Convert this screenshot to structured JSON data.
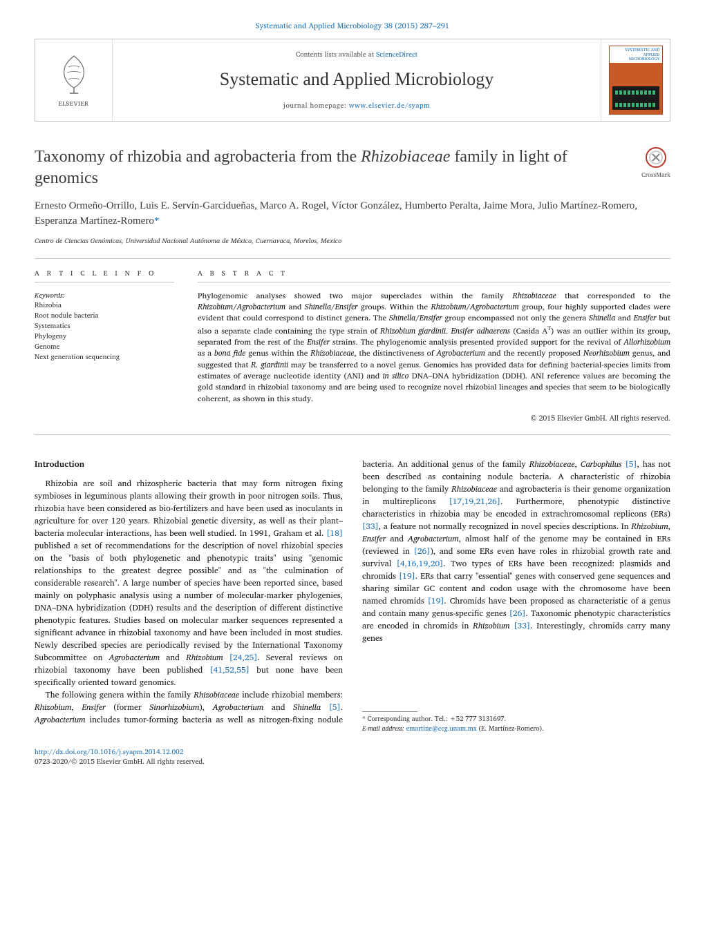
{
  "top_link": {
    "prefix": "",
    "journal": "Systematic and Applied Microbiology 38 (2015) 287–291"
  },
  "masthead": {
    "publisher": "ELSEVIER",
    "contents_prefix": "Contents lists available at ",
    "contents_link": "ScienceDirect",
    "journal_title": "Systematic and Applied Microbiology",
    "homepage_prefix": "journal homepage: ",
    "homepage_url": "www.elsevier.de/syapm",
    "cover_head": "SYSTEMATIC AND APPLIED MICROBIOLOGY"
  },
  "crossmark": "CrossMark",
  "title": {
    "pre": "Taxonomy of rhizobia and agrobacteria from the ",
    "ital": "Rhizobiaceae",
    "post": " family in light of genomics"
  },
  "authors": "Ernesto Ormeño-Orrillo, Luis E. Servín-Garcidueñas, Marco A. Rogel, Víctor González, Humberto Peralta, Jaime Mora, Julio Martínez-Romero, Esperanza Martínez-Romero",
  "corr_marker": "*",
  "affiliation": "Centro de Ciencias Genómicas, Universidad Nacional Autónoma de México, Cuernavaca, Morelos, Mexico",
  "info_head": "a r t i c l e   i n f o",
  "abs_head": "a b s t r a c t",
  "keywords_label": "Keywords:",
  "keywords": [
    "Rhizobia",
    "Root nodule bacteria",
    "Systematics",
    "Phylogeny",
    "Genome",
    "Next generation sequencing"
  ],
  "abstract_html": "Phylogenomic analyses showed two major superclades within the family <span class=\"ital\">Rhizobiaceae</span> that corresponded to the <span class=\"ital\">Rhizobium/Agrobacterium</span> and <span class=\"ital\">Shinella/Ensifer</span> groups. Within the <span class=\"ital\">Rhizobium/Agrobacterium</span> group, four highly supported clades were evident that could correspond to distinct genera. The <span class=\"ital\">Shinella/Ensifer</span> group encompassed not only the genera <span class=\"ital\">Shinella</span> and <span class=\"ital\">Ensifer</span> but also a separate clade containing the type strain of <span class=\"ital\">Rhizobium giardinii</span>. <span class=\"ital\">Ensifer adhaerens</span> (Casida A<sup>T</sup>) was an outlier within its group, separated from the rest of the <span class=\"ital\">Ensifer</span> strains. The phylogenomic analysis presented provided support for the revival of <span class=\"ital\">Allorhizobium</span> as a <span class=\"ital\">bona fide</span> genus within the <span class=\"ital\">Rhizobiaceae</span>, the distinctiveness of <span class=\"ital\">Agrobacterium</span> and the recently proposed <span class=\"ital\">Neorhizobium</span> genus, and suggested that <span class=\"ital\">R. giardinii</span> may be transferred to a novel genus. Genomics has provided data for defining bacterial-species limits from estimates of average nucleotide identity (ANI) and <span class=\"ital\">in silico</span> DNA–DNA hybridization (DDH). ANI reference values are becoming the gold standard in rhizobial taxonomy and are being used to recognize novel rhizobial lineages and species that seem to be biologically coherent, as shown in this study.",
  "abs_copyright": "© 2015 Elsevier GmbH. All rights reserved.",
  "body": {
    "intro_head": "Introduction",
    "p1a": "Rhizobia are soil and rhizospheric bacteria that may form nitrogen fixing symbioses in leguminous plants allowing their growth in poor nitrogen soils. Thus, rhizobia have been considered as bio-fertilizers and have been used as inoculants in agriculture for over 120 years. Rhizobial genetic diversity, as well as their plant–bacteria molecular interactions, has been well studied. In 1991, Graham et al. ",
    "r18": "[18]",
    "p1b": " published a set of recommendations for the description of novel rhizobial species on the \"basis of both phylogenetic and phenotypic traits\" using \"genomic relationships to the greatest degree possible\" and as \"the culmination of considerable research\". A large number of species have been reported since, based mainly on polyphasic analysis using a number of molecular-marker phylogenies, DNA–DNA hybridization (DDH) results and the description of different distinctive phenotypic features. Studies based on molecular marker sequences represented a significant advance in rhizobial taxonomy and have been included in most studies. Newly described species are periodically revised by the International Taxonomy Subcommittee on ",
    "p1c_i1": "Agrobacterium",
    "p1c_and": " and ",
    "p1c_i2": "Rhizobium",
    "p1c_sp": " ",
    "r2425": "[24,25]",
    "p1d": ". Several reviews on rhizobial taxonomy have been published ",
    "r415255": "[41,52,55]",
    "p1e": " but none have been specifically oriented toward genomics.",
    "p2a": "The following genera within the family ",
    "p2a_i1": "Rhizobiaceae",
    "p2b": " include rhizobial members: ",
    "p2b_i1": "Rhizobium",
    "p2b_c1": ", ",
    "p2b_i2": "Ensifer",
    "p2b_c2": " (former ",
    "p2b_i3": "Sinorhizobium",
    "p2b_c3": "), ",
    "p2b_i4": "Agrobacterium",
    "p2b_c4": " and ",
    "p2b_i5": "Shinella",
    "p2b_sp": " ",
    "r5a": "[5]",
    "p2c": ". ",
    "p2c_i1": "Agrobacterium",
    "p2d": " includes tumor-forming bacteria as well as nitrogen-fixing nodule bacteria. An additional genus of the family ",
    "p2d_i1": "Rhizobiaceae",
    "p2d_c1": ", ",
    "p2d_i2": "Carbophilus",
    "p2d_sp": " ",
    "r5b": "[5]",
    "p2e": ", has not been described as containing nodule bacteria. A characteristic of rhizobia belonging to the family ",
    "p2e_i1": "Rhizobiaceae",
    "p2f": " and agrobacteria is their genome organization in multireplicons ",
    "r17192126": "[17,19,21,26]",
    "p2g": ". Furthermore, phenotypic distinctive characteristics in rhizobia may be encoded in extrachromosomal replicons (ERs) ",
    "r33a": "[33]",
    "p2h": ", a feature not normally recognized in novel species descriptions. In ",
    "p2h_i1": "Rhizobium",
    "p2h_c1": ", ",
    "p2h_i2": "Ensifer",
    "p2h_c2": " and ",
    "p2h_i3": "Agrobacterium",
    "p2i": ", almost half of the genome may be contained in ERs (reviewed in ",
    "r26": "[26]",
    "p2j": "), and some ERs even have roles in rhizobial growth rate and survival ",
    "r4161920": "[4,16,19,20]",
    "p2k": ". Two types of ERs have been recognized: plasmids and chromids ",
    "r19a": "[19]",
    "p2l": ". ERs that carry \"essential\" genes with conserved gene sequences and sharing similar GC content and codon usage with the chromosome have been named chromids ",
    "r19b": "[19]",
    "p2m": ". Chromids have been proposed as characteristic of a genus and contain many genus-specific genes ",
    "r26b": "[26]",
    "p2n": ". Taxonomic phenotypic characteristics are encoded in chromids in ",
    "p2n_i1": "Rhizobium",
    "p2n_sp": " ",
    "r33b": "[33]",
    "p2o": ". Interestingly, chromids carry many genes"
  },
  "footnotes": {
    "corr": "* Corresponding author. Tel.: +52 777 3131697.",
    "email_label": "E-mail address: ",
    "email": "emartine@ccg.unam.mx",
    "email_who": " (E. Martínez-Romero)."
  },
  "footer": {
    "doi": "http://dx.doi.org/10.1016/j.syapm.2014.12.002",
    "issn": "0723-2020/© 2015 Elsevier GmbH. All rights reserved."
  },
  "colors": {
    "link": "#1a6fb5",
    "rule": "#bfbfbf",
    "cover": "#c85a28",
    "text": "#1a1a1a"
  }
}
